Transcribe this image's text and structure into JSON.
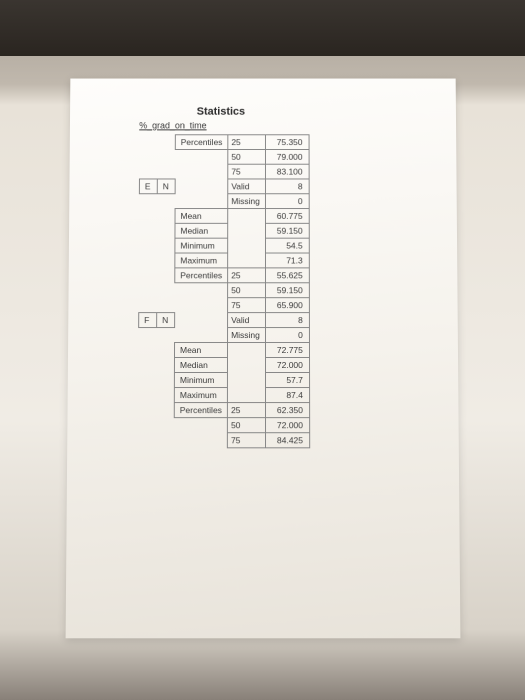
{
  "title": "Statistics",
  "subtitle": "%_grad_on_time",
  "rows": [
    {
      "c1": "",
      "c2": "",
      "c3": "Percentiles",
      "c4": "25",
      "c5": "75.350"
    },
    {
      "c1": "",
      "c2": "",
      "c3": "",
      "c4": "50",
      "c5": "79.000"
    },
    {
      "c1": "",
      "c2": "",
      "c3": "",
      "c4": "75",
      "c5": "83.100"
    },
    {
      "c1": "E",
      "c2": "N",
      "c3": "",
      "c4": "Valid",
      "c5": "8"
    },
    {
      "c1": "",
      "c2": "",
      "c3": "",
      "c4": "Missing",
      "c5": "0"
    },
    {
      "c1": "",
      "c2": "",
      "c3": "Mean",
      "c4": "",
      "c5": "60.775"
    },
    {
      "c1": "",
      "c2": "",
      "c3": "Median",
      "c4": "",
      "c5": "59.150"
    },
    {
      "c1": "",
      "c2": "",
      "c3": "Minimum",
      "c4": "",
      "c5": "54.5"
    },
    {
      "c1": "",
      "c2": "",
      "c3": "Maximum",
      "c4": "",
      "c5": "71.3"
    },
    {
      "c1": "",
      "c2": "",
      "c3": "Percentiles",
      "c4": "25",
      "c5": "55.625"
    },
    {
      "c1": "",
      "c2": "",
      "c3": "",
      "c4": "50",
      "c5": "59.150"
    },
    {
      "c1": "",
      "c2": "",
      "c3": "",
      "c4": "75",
      "c5": "65.900"
    },
    {
      "c1": "F",
      "c2": "N",
      "c3": "",
      "c4": "Valid",
      "c5": "8"
    },
    {
      "c1": "",
      "c2": "",
      "c3": "",
      "c4": "Missing",
      "c5": "0"
    },
    {
      "c1": "",
      "c2": "",
      "c3": "Mean",
      "c4": "",
      "c5": "72.775"
    },
    {
      "c1": "",
      "c2": "",
      "c3": "Median",
      "c4": "",
      "c5": "72.000"
    },
    {
      "c1": "",
      "c2": "",
      "c3": "Minimum",
      "c4": "",
      "c5": "57.7"
    },
    {
      "c1": "",
      "c2": "",
      "c3": "Maximum",
      "c4": "",
      "c5": "87.4"
    },
    {
      "c1": "",
      "c2": "",
      "c3": "Percentiles",
      "c4": "25",
      "c5": "62.350"
    },
    {
      "c1": "",
      "c2": "",
      "c3": "",
      "c4": "50",
      "c5": "72.000"
    },
    {
      "c1": "",
      "c2": "",
      "c3": "",
      "c4": "75",
      "c5": "84.425"
    }
  ]
}
